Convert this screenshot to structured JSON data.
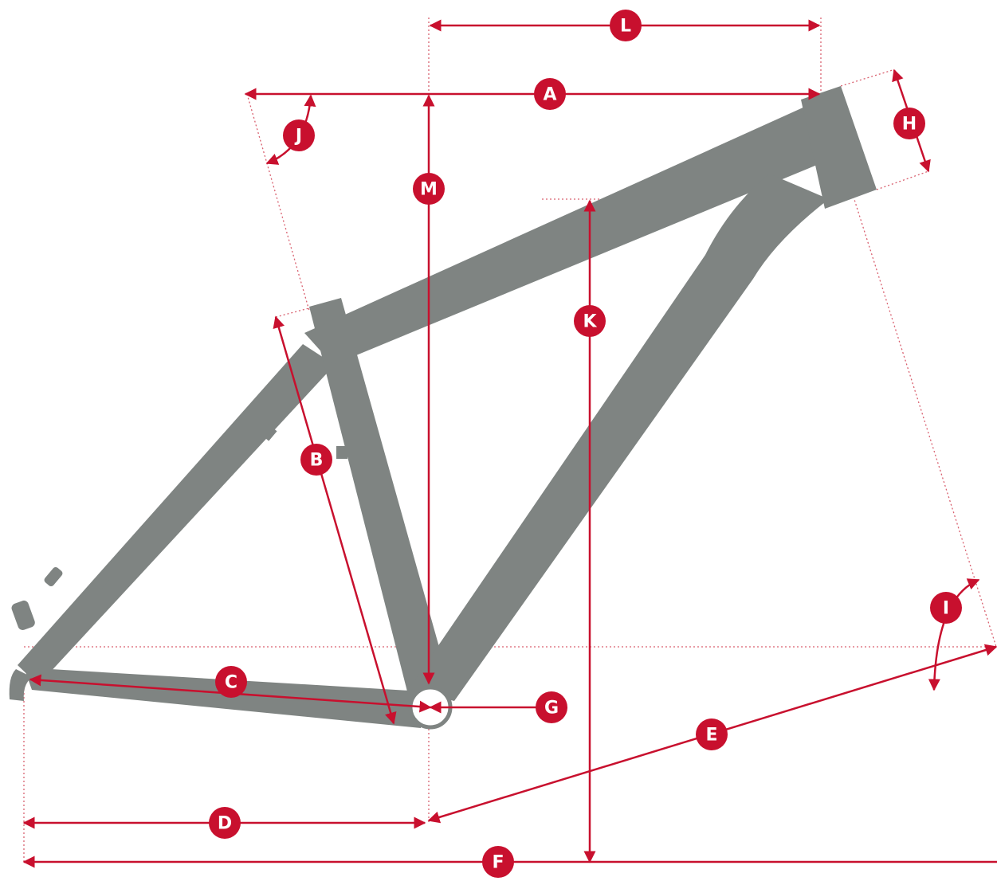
{
  "dimension_labels": [
    "L",
    "A",
    "H",
    "J",
    "M",
    "K",
    "B",
    "I",
    "C",
    "G",
    "E",
    "D",
    "F"
  ]
}
